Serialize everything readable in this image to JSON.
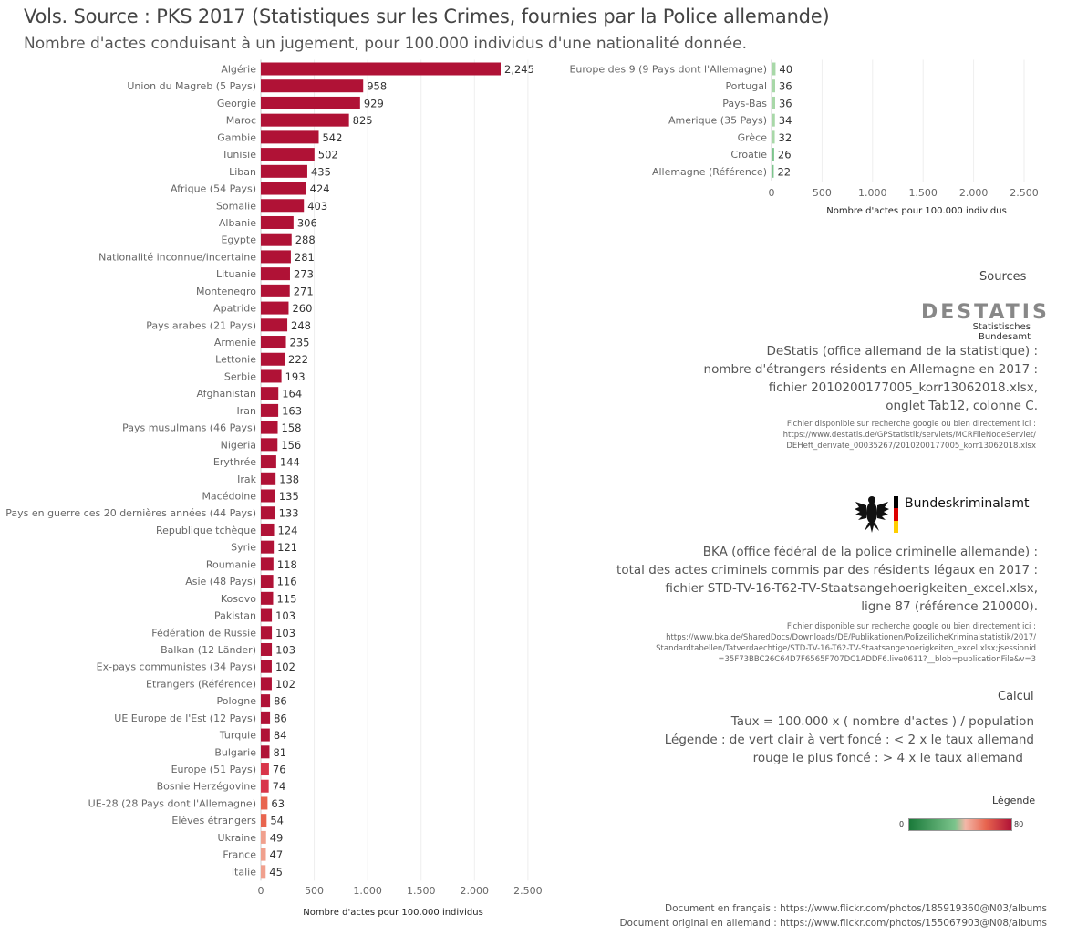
{
  "header": {
    "title": "Vols. Source : PKS 2017 (Statistiques sur les Crimes, fournies par la Police allemande)",
    "subtitle": "Nombre d'actes conduisant à un jugement, pour 100.000 individus d'une nationalité donnée."
  },
  "chart_data": [
    {
      "type": "bar",
      "orientation": "horizontal",
      "categories": [
        "Algérie",
        "Union du Magreb (5 Pays)",
        "Georgie",
        "Maroc",
        "Gambie",
        "Tunisie",
        "Liban",
        "Afrique (54 Pays)",
        "Somalie",
        "Albanie",
        "Egypte",
        "Nationalité inconnue/incertaine",
        "Lituanie",
        "Montenegro",
        "Apatride",
        "Pays arabes (21 Pays)",
        "Armenie",
        "Lettonie",
        "Serbie",
        "Afghanistan",
        "Iran",
        "Pays musulmans (46 Pays)",
        "Nigeria",
        "Erythrée",
        "Irak",
        "Macédoine",
        "Pays en guerre ces 20 dernières années (44 Pays)",
        "Republique tchèque",
        "Syrie",
        "Roumanie",
        "Asie (48 Pays)",
        "Kosovo",
        "Pakistan",
        "Fédération de Russie",
        "Balkan (12 Länder)",
        "Ex-pays communistes (34 Pays)",
        "Etrangers (Référence)",
        "Pologne",
        "UE Europe de l'Est (12 Pays)",
        "Turquie",
        "Bulgarie",
        "Europe (51 Pays)",
        "Bosnie Herzégovine",
        "UE-28 (28 Pays dont l'Allemagne)",
        "Elèves étrangers",
        "Ukraine",
        "France",
        "Italie"
      ],
      "values": [
        2245,
        958,
        929,
        825,
        542,
        502,
        435,
        424,
        403,
        306,
        288,
        281,
        273,
        271,
        260,
        248,
        235,
        222,
        193,
        164,
        163,
        158,
        156,
        144,
        138,
        135,
        133,
        124,
        121,
        118,
        116,
        115,
        103,
        103,
        103,
        102,
        102,
        86,
        86,
        84,
        81,
        76,
        74,
        63,
        54,
        49,
        47,
        45
      ],
      "value_labels": [
        "2,245",
        "958",
        "929",
        "825",
        "542",
        "502",
        "435",
        "424",
        "403",
        "306",
        "288",
        "281",
        "273",
        "271",
        "260",
        "248",
        "235",
        "222",
        "193",
        "164",
        "163",
        "158",
        "156",
        "144",
        "138",
        "135",
        "133",
        "124",
        "121",
        "118",
        "116",
        "115",
        "103",
        "103",
        "103",
        "102",
        "102",
        "86",
        "86",
        "84",
        "81",
        "76",
        "74",
        "63",
        "54",
        "49",
        "47",
        "45"
      ],
      "xlabel": "Nombre d'actes pour 100.000 individus",
      "xlim": [
        0,
        2500
      ],
      "xticks": [
        0,
        500,
        1000,
        1500,
        2000,
        2500
      ],
      "xtick_labels": [
        "0",
        "500",
        "1.000",
        "1.500",
        "2.000",
        "2.500"
      ],
      "grid": true
    },
    {
      "type": "bar",
      "orientation": "horizontal",
      "categories": [
        "Europe des 9 (9 Pays dont l'Allemagne)",
        "Portugal",
        "Pays-Bas",
        "Amerique (35 Pays)",
        "Grèce",
        "Croatie",
        "Allemagne (Référence)"
      ],
      "values": [
        40,
        36,
        36,
        34,
        32,
        26,
        22
      ],
      "value_labels": [
        "40",
        "36",
        "36",
        "34",
        "32",
        "26",
        "22"
      ],
      "xlabel": "Nombre d'actes pour 100.000 individus",
      "xlim": [
        0,
        2500
      ],
      "xticks": [
        0,
        500,
        1000,
        1500,
        2000,
        2500
      ],
      "xtick_labels": [
        "0",
        "500",
        "1.000",
        "1.500",
        "2.000",
        "2.500"
      ],
      "grid": true
    }
  ],
  "colors": {
    "dark_red": "#b01236",
    "red": "#d8354a",
    "salmon": "#e8654f",
    "light_salmon": "#f0a08d",
    "light_green": "#a8d8a8",
    "green": "#7cc48c",
    "grid": "#eeeeee"
  },
  "sources": {
    "title": "Sources",
    "destatis_logo": "DESTATIS",
    "destatis_logo_sub": "Statistisches Bundesamt",
    "destatis_lines": [
      "DeStatis (office allemand de la statistique) :",
      "nombre d'étrangers résidents en Allemagne en 2017 :",
      "fichier 2010200177005_korr13062018.xlsx,",
      "onglet Tab12, colonne C."
    ],
    "destatis_file_lines": [
      "Fichier disponible sur recherche google ou bien directement ici :",
      "https://www.destatis.de/GPStatistik/servlets/MCRFileNodeServlet/",
      "DEHeft_derivate_00035267/2010200177005_korr13062018.xlsx"
    ],
    "bka_logo": "Bundeskriminalamt",
    "bka_lines": [
      "BKA (office fédéral de la police criminelle allemande) :",
      "total des actes criminels commis par des résidents légaux en 2017 :",
      "fichier STD-TV-16-T62-TV-Staatsangehoerigkeiten_excel.xlsx,",
      "ligne 87 (référence 210000)."
    ],
    "bka_file_lines": [
      "Fichier disponible sur recherche google ou bien directement ici :",
      "https://www.bka.de/SharedDocs/Downloads/DE/Publikationen/PolizeilicheKriminalstatistik/2017/",
      "Standardtabellen/Tatverdaechtige/STD-TV-16-T62-TV-Staatsangehoerigkeiten_excel.xlsx;jsessionid",
      "=35F73BBC26C64D7F6565F707DC1ADDF6.live0611?__blob=publicationFile&v=3"
    ]
  },
  "calcul": {
    "title": "Calcul",
    "lines": [
      "Taux = 100.000 x ( nombre d'actes ) / population",
      "Légende : de vert clair à vert foncé : < 2 x le taux allemand",
      "rouge le plus foncé : > 4 x le taux allemand"
    ]
  },
  "legend": {
    "title": "Légende",
    "min": "0",
    "max": "80"
  },
  "footer": {
    "line1": "Document en français : https://www.flickr.com/photos/185919360@N03/albums",
    "line2": "Document original en allemand : https://www.flickr.com/photos/155067903@N08/albums"
  }
}
